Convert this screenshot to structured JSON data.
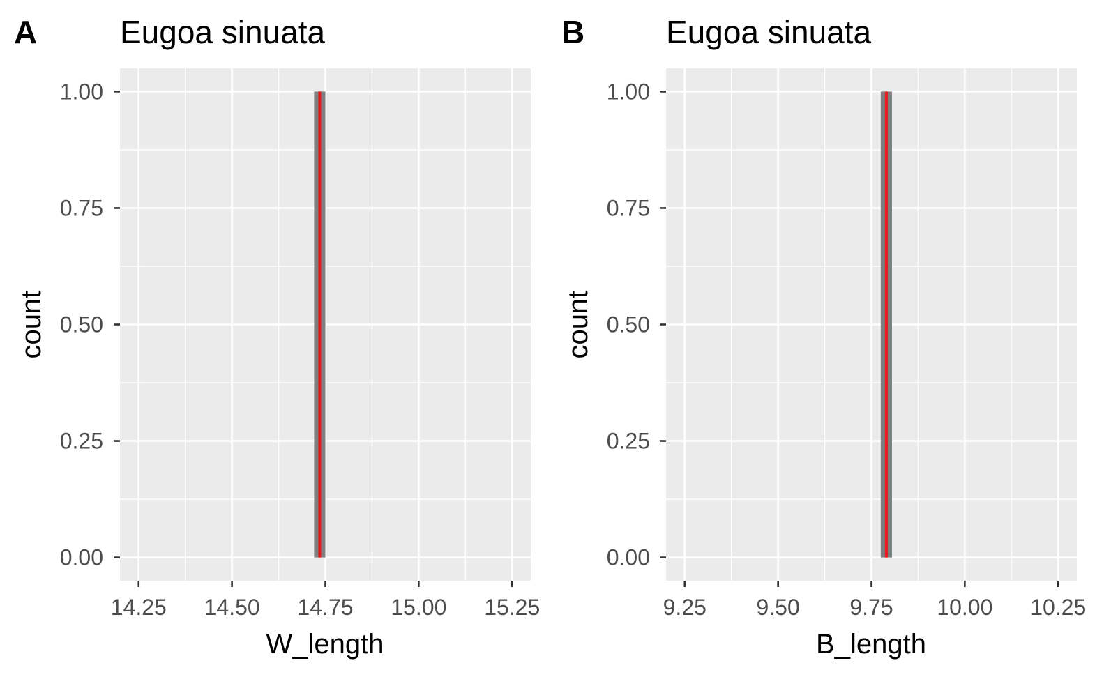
{
  "chart_data": [
    {
      "type": "bar",
      "panel_label": "A",
      "title": "Eugoa sinuata",
      "xlabel": "W_length",
      "ylabel": "count",
      "xlim": [
        14.2,
        15.3
      ],
      "ylim": [
        -0.05,
        1.05
      ],
      "xticks": [
        14.25,
        14.5,
        14.75,
        15.0,
        15.25
      ],
      "xtick_labels": [
        "14.25",
        "14.50",
        "14.75",
        "15.00",
        "15.25"
      ],
      "yticks": [
        0,
        0.25,
        0.5,
        0.75,
        1.0
      ],
      "ytick_labels": [
        "0.00",
        "0.25",
        "0.50",
        "0.75",
        "1.00"
      ],
      "bars": [
        {
          "x": 14.735,
          "width": 0.03,
          "count": 1
        }
      ],
      "mean_line": {
        "x": 14.735,
        "color": "#e41a1c"
      },
      "bar_color": "#7f7f7f",
      "panel_background": "#ebebeb",
      "grid": true
    },
    {
      "type": "bar",
      "panel_label": "B",
      "title": "Eugoa sinuata",
      "xlabel": "B_length",
      "ylabel": "count",
      "xlim": [
        9.2,
        10.3
      ],
      "ylim": [
        -0.05,
        1.05
      ],
      "xticks": [
        9.25,
        9.5,
        9.75,
        10.0,
        10.25
      ],
      "xtick_labels": [
        "9.25",
        "9.50",
        "9.75",
        "10.00",
        "10.25"
      ],
      "yticks": [
        0,
        0.25,
        0.5,
        0.75,
        1.0
      ],
      "ytick_labels": [
        "0.00",
        "0.25",
        "0.50",
        "0.75",
        "1.00"
      ],
      "bars": [
        {
          "x": 9.79,
          "width": 0.03,
          "count": 1
        }
      ],
      "mean_line": {
        "x": 9.79,
        "color": "#e41a1c"
      },
      "bar_color": "#7f7f7f",
      "panel_background": "#ebebeb",
      "grid": true
    }
  ]
}
